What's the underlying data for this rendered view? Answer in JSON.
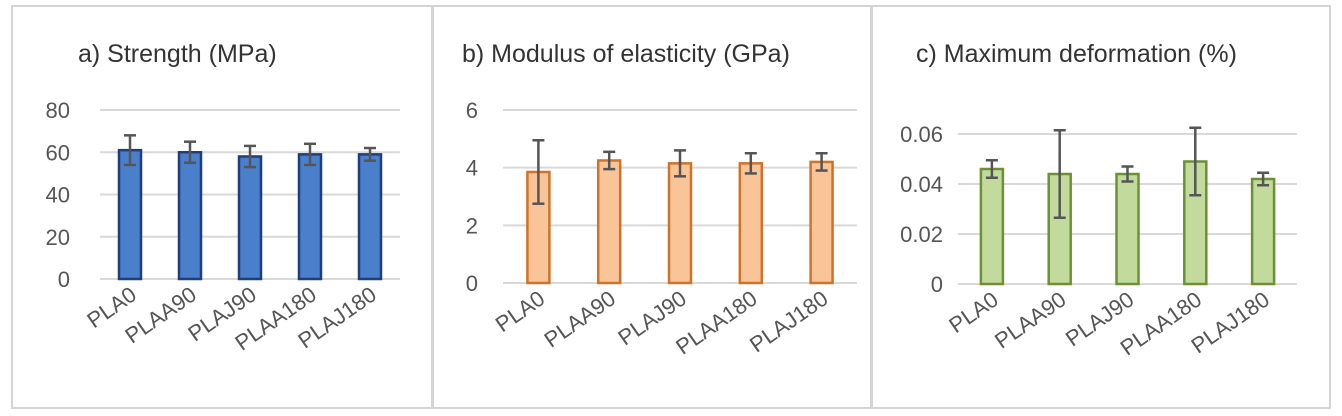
{
  "chart_data": [
    {
      "type": "bar",
      "title": "a)  Strength (MPa)",
      "categories": [
        "PLA0",
        "PLAA90",
        "PLAJ90",
        "PLAA180",
        "PLAJ180"
      ],
      "values": [
        61,
        60,
        58,
        59,
        59
      ],
      "errors": [
        7,
        5,
        5,
        5,
        3
      ],
      "ylim": [
        0,
        80
      ],
      "yticks": [
        "0",
        "20",
        "40",
        "60",
        "80"
      ],
      "xlabel": "",
      "ylabel": "",
      "grid": true,
      "color": {
        "fill": "#4a7fcb",
        "stroke": "#1f3f7a"
      }
    },
    {
      "type": "bar",
      "title": "b)  Modulus of elasticity (GPa)",
      "categories": [
        "PLA0",
        "PLAA90",
        "PLAJ90",
        "PLAA180",
        "PLAJ180"
      ],
      "values": [
        3.85,
        4.25,
        4.15,
        4.15,
        4.2
      ],
      "errors": [
        1.1,
        0.3,
        0.45,
        0.35,
        0.3
      ],
      "ylim": [
        0,
        6
      ],
      "yticks": [
        "0",
        "2",
        "4",
        "6"
      ],
      "xlabel": "",
      "ylabel": "",
      "grid": true,
      "color": {
        "fill": "#f9c498",
        "stroke": "#d0732a"
      }
    },
    {
      "type": "bar",
      "title": "c) Maximum deformation (%)",
      "categories": [
        "PLA0",
        "PLAA90",
        "PLAJ90",
        "PLAA180",
        "PLAJ180"
      ],
      "values": [
        0.046,
        0.044,
        0.044,
        0.049,
        0.042
      ],
      "errors": [
        0.0035,
        0.0175,
        0.003,
        0.0135,
        0.0025
      ],
      "ylim": [
        0,
        0.07
      ],
      "yticks": [
        "0",
        "0.02",
        "0.04",
        "0.06"
      ],
      "xlabel": "",
      "ylabel": "",
      "grid": true,
      "color": {
        "fill": "#c3da9d",
        "stroke": "#6c9135"
      }
    }
  ]
}
